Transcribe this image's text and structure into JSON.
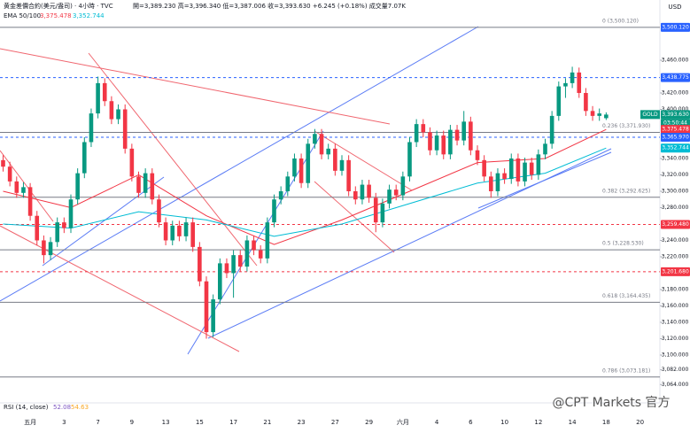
{
  "chart_data": {
    "type": "candlestick",
    "title": "黄金差價合約(美元/盎司) · 4小時 · TVC",
    "ohlc_text": "開=3,389.230  高=3,396.340  低=3,387.006  收=3,393.630  +6.245 (+0.18%)  成交量7.07K",
    "indicator_label": "EMA 50/100",
    "indicator_values": [
      "3,375.478",
      "3,352.744"
    ],
    "rsi_label": "RSI (14, close)",
    "rsi_values": [
      "52.08",
      "54.63"
    ],
    "currency": "USD",
    "watermark": "@CPT Markets 官方",
    "up_color": "#089981",
    "down_color": "#f23645",
    "categories": [
      null,
      null,
      null,
      null,
      "五月",
      null,
      null,
      null,
      null,
      "3",
      null,
      null,
      null,
      null,
      "7",
      null,
      null,
      null,
      null,
      "9",
      null,
      null,
      null,
      null,
      "13",
      null,
      null,
      null,
      null,
      "15",
      null,
      null,
      null,
      null,
      "17",
      null,
      null,
      null,
      null,
      "21",
      null,
      null,
      null,
      null,
      "23",
      null,
      null,
      null,
      null,
      "27",
      null,
      null,
      null,
      null,
      "29",
      null,
      null,
      null,
      null,
      "六月",
      null,
      null,
      null,
      null,
      "4",
      null,
      null,
      null,
      null,
      "6",
      null,
      null,
      null,
      null,
      "10",
      null,
      null,
      null,
      null,
      "12",
      null,
      null,
      null,
      null,
      "14",
      null,
      null,
      null,
      null,
      "18",
      null,
      null,
      null,
      null,
      "20"
    ],
    "ohlc": [
      [
        3338,
        3344,
        3324,
        3330
      ],
      [
        3330,
        3336,
        3306,
        3312
      ],
      [
        3312,
        3318,
        3292,
        3298
      ],
      [
        3298,
        3311,
        3292,
        3305
      ],
      [
        3305,
        3310,
        3264,
        3270
      ],
      [
        3270,
        3276,
        3234,
        3240
      ],
      [
        3240,
        3246,
        3212,
        3222
      ],
      [
        3222,
        3244,
        3216,
        3238
      ],
      [
        3238,
        3268,
        3232,
        3262
      ],
      [
        3262,
        3268,
        3249,
        3255
      ],
      [
        3255,
        3296,
        3249,
        3290
      ],
      [
        3290,
        3328,
        3284,
        3322
      ],
      [
        3322,
        3366,
        3316,
        3360
      ],
      [
        3360,
        3401,
        3354,
        3395
      ],
      [
        3395,
        3440,
        3389,
        3432
      ],
      [
        3432,
        3438,
        3404,
        3410
      ],
      [
        3410,
        3416,
        3382,
        3388
      ],
      [
        3388,
        3406,
        3382,
        3400
      ],
      [
        3400,
        3406,
        3346,
        3352
      ],
      [
        3352,
        3358,
        3312,
        3318
      ],
      [
        3318,
        3324,
        3292,
        3298
      ],
      [
        3298,
        3328,
        3292,
        3322
      ],
      [
        3322,
        3328,
        3284,
        3290
      ],
      [
        3290,
        3296,
        3256,
        3262
      ],
      [
        3262,
        3268,
        3234,
        3240
      ],
      [
        3240,
        3264,
        3234,
        3258
      ],
      [
        3258,
        3264,
        3239,
        3245
      ],
      [
        3245,
        3268,
        3239,
        3262
      ],
      [
        3262,
        3268,
        3226,
        3232
      ],
      [
        3232,
        3238,
        3184,
        3190
      ],
      [
        3190,
        3196,
        3120,
        3128
      ],
      [
        3128,
        3174,
        3122,
        3168
      ],
      [
        3168,
        3218,
        3162,
        3212
      ],
      [
        3212,
        3218,
        3194,
        3200
      ],
      [
        3200,
        3228,
        3170,
        3222
      ],
      [
        3222,
        3228,
        3202,
        3208
      ],
      [
        3208,
        3246,
        3202,
        3240
      ],
      [
        3240,
        3246,
        3222,
        3228
      ],
      [
        3228,
        3234,
        3212,
        3218
      ],
      [
        3218,
        3268,
        3212,
        3262
      ],
      [
        3262,
        3296,
        3256,
        3290
      ],
      [
        3290,
        3306,
        3284,
        3300
      ],
      [
        3300,
        3324,
        3294,
        3318
      ],
      [
        3318,
        3346,
        3312,
        3340
      ],
      [
        3340,
        3346,
        3304,
        3310
      ],
      [
        3310,
        3364,
        3304,
        3358
      ],
      [
        3358,
        3376,
        3352,
        3370
      ],
      [
        3370,
        3376,
        3339,
        3345
      ],
      [
        3345,
        3358,
        3339,
        3352
      ],
      [
        3352,
        3358,
        3319,
        3325
      ],
      [
        3325,
        3344,
        3319,
        3338
      ],
      [
        3338,
        3344,
        3294,
        3300
      ],
      [
        3300,
        3306,
        3284,
        3290
      ],
      [
        3290,
        3314,
        3284,
        3308
      ],
      [
        3308,
        3314,
        3286,
        3292
      ],
      [
        3292,
        3298,
        3250,
        3262
      ],
      [
        3262,
        3291,
        3256,
        3285
      ],
      [
        3285,
        3308,
        3279,
        3302
      ],
      [
        3302,
        3308,
        3289,
        3295
      ],
      [
        3295,
        3324,
        3289,
        3318
      ],
      [
        3318,
        3366,
        3312,
        3360
      ],
      [
        3360,
        3388,
        3354,
        3382
      ],
      [
        3382,
        3388,
        3366,
        3372
      ],
      [
        3372,
        3378,
        3344,
        3350
      ],
      [
        3350,
        3374,
        3344,
        3368
      ],
      [
        3368,
        3374,
        3339,
        3345
      ],
      [
        3345,
        3381,
        3339,
        3375
      ],
      [
        3375,
        3381,
        3356,
        3362
      ],
      [
        3362,
        3398,
        3356,
        3385
      ],
      [
        3385,
        3391,
        3344,
        3350
      ],
      [
        3350,
        3356,
        3332,
        3338
      ],
      [
        3338,
        3344,
        3312,
        3318
      ],
      [
        3318,
        3324,
        3292,
        3300
      ],
      [
        3300,
        3328,
        3294,
        3322
      ],
      [
        3322,
        3328,
        3309,
        3315
      ],
      [
        3315,
        3346,
        3309,
        3340
      ],
      [
        3340,
        3346,
        3306,
        3312
      ],
      [
        3312,
        3341,
        3306,
        3335
      ],
      [
        3335,
        3341,
        3314,
        3320
      ],
      [
        3320,
        3351,
        3314,
        3345
      ],
      [
        3345,
        3364,
        3339,
        3358
      ],
      [
        3358,
        3398,
        3352,
        3392
      ],
      [
        3392,
        3434,
        3386,
        3428
      ],
      [
        3428,
        3438,
        3414,
        3432
      ],
      [
        3432,
        3452,
        3426,
        3445
      ],
      [
        3445,
        3451,
        3414,
        3420
      ],
      [
        3420,
        3426,
        3392,
        3398
      ],
      [
        3398,
        3404,
        3386,
        3392
      ],
      [
        3392,
        3401,
        3386,
        3395
      ],
      [
        3389.23,
        3396.34,
        3387.006,
        3393.63
      ],
      null,
      null,
      null,
      null,
      null
    ],
    "lines": [
      {
        "color": "#f23645",
        "x": [
          0,
          10,
          20,
          30,
          40,
          50,
          60,
          70,
          80,
          89
        ],
        "values": [
          3300,
          3280,
          3320,
          3270,
          3235,
          3265,
          3300,
          3335,
          3340,
          3375.478
        ]
      },
      {
        "color": "#00bcd4",
        "x": [
          0,
          10,
          20,
          30,
          40,
          50,
          60,
          70,
          80,
          89
        ],
        "values": [
          3260,
          3255,
          3275,
          3265,
          3245,
          3260,
          3285,
          3310,
          3322,
          3352.744
        ]
      }
    ],
    "ylim": [
      3041.6,
      3533.5
    ],
    "yticks": [
      {
        "value": 3064,
        "label": "3,064.000"
      },
      {
        "value": 3082,
        "label": "3,082.000"
      },
      {
        "value": 3100,
        "label": "3,100.000"
      },
      {
        "value": 3120,
        "label": "3,120.000"
      },
      {
        "value": 3140,
        "label": "3,140.000"
      },
      {
        "value": 3160,
        "label": "3,160.000"
      },
      {
        "value": 3180,
        "label": "3,180.000"
      },
      {
        "value": 3220,
        "label": "3,220.000"
      },
      {
        "value": 3240,
        "label": "3,240.000"
      },
      {
        "value": 3280,
        "label": "3,280.000"
      },
      {
        "value": 3300,
        "label": "3,300.000"
      },
      {
        "value": 3320,
        "label": "3,320.000"
      },
      {
        "value": 3340,
        "label": "3,340.000"
      },
      {
        "value": 3400,
        "label": "3,400.000"
      },
      {
        "value": 3420,
        "label": "3,420.000"
      },
      {
        "value": 3460,
        "label": "3,460.000"
      }
    ],
    "fib_levels": [
      {
        "value": 3500.12,
        "label": "0 (3,500.120)"
      },
      {
        "value": 3371.93,
        "label": "0.236 (3,371.930)"
      },
      {
        "value": 3292.625,
        "label": "0.382 (3,292.625)"
      },
      {
        "value": 3228.53,
        "label": "0.5 (3,228.530)"
      },
      {
        "value": 3164.435,
        "label": "0.618 (3,164.435)"
      },
      {
        "value": 3073.181,
        "label": "0.786 (3,073.181)"
      }
    ],
    "price_lines": [
      {
        "value": 3500.12,
        "label": "3,500.120",
        "color": "#2962ff"
      },
      {
        "value": 3438.775,
        "label": "3,438.775",
        "color": "#2962ff",
        "dashed": true
      },
      {
        "value": 3393.63,
        "label": "3,393.630",
        "color": "#089981",
        "name": "GOLD",
        "countdown": "03:50:44"
      },
      {
        "value": 3375.478,
        "label": "3,375.478",
        "color": "#f23645"
      },
      {
        "value": 3365.97,
        "label": "3,365.970",
        "color": "#2962ff",
        "dashed": true
      },
      {
        "value": 3352.744,
        "label": "3,352.744",
        "color": "#00bcd4"
      },
      {
        "value": 3259.48,
        "label": "3,259.480",
        "color": "#f23645",
        "dashed": true
      },
      {
        "value": 3201.68,
        "label": "3,201.680",
        "color": "#f23645",
        "dashed": true
      }
    ]
  }
}
